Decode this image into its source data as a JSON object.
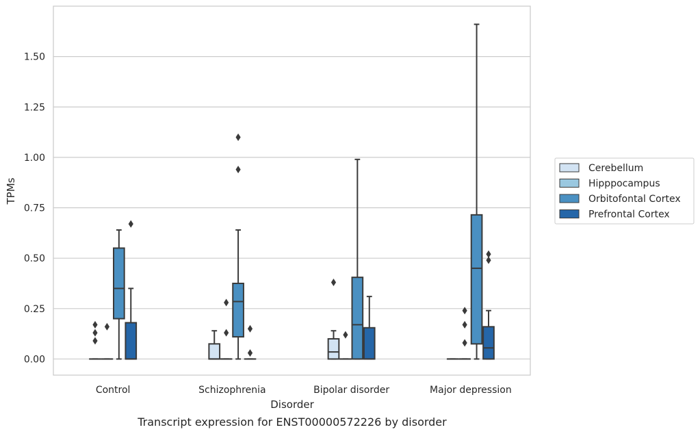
{
  "chart_data": {
    "type": "box",
    "title": "",
    "caption": "Transcript expression for ENST00000572226 by disorder",
    "xlabel": "Disorder",
    "ylabel": "TPMs",
    "ylim": [
      -0.08,
      1.75
    ],
    "yticks": [
      0.0,
      0.25,
      0.5,
      0.75,
      1.0,
      1.25,
      1.5
    ],
    "ytick_labels": [
      "0.00",
      "0.25",
      "0.50",
      "0.75",
      "1.00",
      "1.25",
      "1.50"
    ],
    "grid": "horizontal",
    "legend_position": "right",
    "categories": [
      "Control",
      "Schizophrenia",
      "Bipolar disorder",
      "Major depression"
    ],
    "series": [
      {
        "name": "Cerebellum",
        "color": "#d2e3f3",
        "boxes": [
          {
            "whisker_low": 0.0,
            "q1": 0.0,
            "median": 0.0,
            "q3": 0.0,
            "whisker_high": 0.0,
            "outliers": [
              0.17,
              0.13,
              0.09
            ]
          },
          {
            "whisker_low": 0.0,
            "q1": 0.0,
            "median": 0.0,
            "q3": 0.075,
            "whisker_high": 0.14,
            "outliers": []
          },
          {
            "whisker_low": 0.0,
            "q1": 0.0,
            "median": 0.035,
            "q3": 0.1,
            "whisker_high": 0.14,
            "outliers": [
              0.38
            ]
          },
          {
            "whisker_low": 0.0,
            "q1": 0.0,
            "median": 0.0,
            "q3": 0.0,
            "whisker_high": 0.0,
            "outliers": []
          }
        ]
      },
      {
        "name": "Hipppocampus",
        "color": "#9ac8e0",
        "boxes": [
          {
            "whisker_low": 0.0,
            "q1": 0.0,
            "median": 0.0,
            "q3": 0.0,
            "whisker_high": 0.0,
            "outliers": [
              0.16
            ]
          },
          {
            "whisker_low": 0.0,
            "q1": 0.0,
            "median": 0.0,
            "q3": 0.0,
            "whisker_high": 0.0,
            "outliers": [
              0.28,
              0.13
            ]
          },
          {
            "whisker_low": 0.0,
            "q1": 0.0,
            "median": 0.0,
            "q3": 0.0,
            "whisker_high": 0.0,
            "outliers": [
              0.12
            ]
          },
          {
            "whisker_low": 0.0,
            "q1": 0.0,
            "median": 0.0,
            "q3": 0.0,
            "whisker_high": 0.0,
            "outliers": [
              0.24,
              0.17,
              0.08
            ]
          }
        ]
      },
      {
        "name": "Orbitofontal Cortex",
        "color": "#4a90c2",
        "boxes": [
          {
            "whisker_low": 0.0,
            "q1": 0.2,
            "median": 0.35,
            "q3": 0.55,
            "whisker_high": 0.64,
            "outliers": []
          },
          {
            "whisker_low": 0.0,
            "q1": 0.11,
            "median": 0.285,
            "q3": 0.375,
            "whisker_high": 0.64,
            "outliers": [
              1.1,
              0.94
            ]
          },
          {
            "whisker_low": 0.0,
            "q1": 0.0,
            "median": 0.17,
            "q3": 0.405,
            "whisker_high": 0.99,
            "outliers": []
          },
          {
            "whisker_low": 0.0,
            "q1": 0.075,
            "median": 0.45,
            "q3": 0.715,
            "whisker_high": 1.66,
            "outliers": []
          }
        ]
      },
      {
        "name": "Prefrontal Cortex",
        "color": "#2566a8",
        "boxes": [
          {
            "whisker_low": 0.0,
            "q1": 0.0,
            "median": 0.0,
            "q3": 0.18,
            "whisker_high": 0.35,
            "outliers": [
              0.67
            ]
          },
          {
            "whisker_low": 0.0,
            "q1": 0.0,
            "median": 0.0,
            "q3": 0.0,
            "whisker_high": 0.0,
            "outliers": [
              0.15,
              0.03
            ]
          },
          {
            "whisker_low": 0.0,
            "q1": 0.0,
            "median": 0.0,
            "q3": 0.155,
            "whisker_high": 0.31,
            "outliers": []
          },
          {
            "whisker_low": 0.0,
            "q1": 0.0,
            "median": 0.055,
            "q3": 0.16,
            "whisker_high": 0.24,
            "outliers": [
              0.52,
              0.49
            ]
          }
        ]
      }
    ]
  }
}
